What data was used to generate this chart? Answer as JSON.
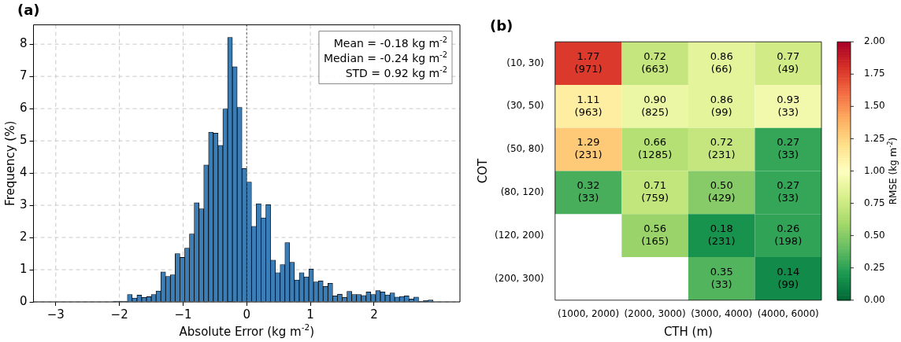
{
  "chart_data": [
    {
      "type": "histogram",
      "title": "(a)",
      "xlabel": "Absolute Error (kg m$^{-2}$)",
      "ylabel": "Frequency (%)",
      "bins": [
        -2.1,
        -2.025,
        -1.95,
        -1.875,
        -1.8,
        -1.725,
        -1.65,
        -1.575,
        -1.5,
        -1.425,
        -1.35,
        -1.275,
        -1.2,
        -1.125,
        -1.05,
        -0.975,
        -0.9,
        -0.825,
        -0.75,
        -0.675,
        -0.6,
        -0.525,
        -0.45,
        -0.375,
        -0.3,
        -0.225,
        -0.15,
        -0.075,
        0,
        0.075,
        0.15,
        0.225,
        0.3,
        0.375,
        0.45,
        0.525,
        0.6,
        0.675,
        0.75,
        0.825,
        0.9,
        0.975,
        1.05,
        1.125,
        1.2,
        1.275,
        1.35,
        1.425,
        1.5,
        1.575,
        1.65,
        1.725,
        1.8,
        1.875,
        1.95,
        2.025,
        2.1,
        2.175,
        2.25,
        2.325,
        2.4,
        2.475,
        2.55,
        2.625,
        2.7,
        2.775,
        2.85,
        2.925
      ],
      "values": [
        0.02,
        0.02,
        0.02,
        0.23,
        0.12,
        0.21,
        0.14,
        0.16,
        0.23,
        0.34,
        0.93,
        0.79,
        0.84,
        1.5,
        1.38,
        1.67,
        2.11,
        3.08,
        2.89,
        4.25,
        5.27,
        5.24,
        4.86,
        5.99,
        8.21,
        7.3,
        6.04,
        4.14,
        3.72,
        2.35,
        3.05,
        2.61,
        3.02,
        1.3,
        0.91,
        1.16,
        1.84,
        1.23,
        0.68,
        0.91,
        0.78,
        1.02,
        0.62,
        0.65,
        0.48,
        0.58,
        0.19,
        0.24,
        0.14,
        0.33,
        0.23,
        0.23,
        0.2,
        0.31,
        0.23,
        0.35,
        0.31,
        0.22,
        0.28,
        0.15,
        0.17,
        0.19,
        0.09,
        0.15,
        0.02,
        0.04,
        0.06
      ],
      "color": "#3b7db6",
      "xlim": [
        -3.35,
        3.35
      ],
      "xticks": [
        {
          "value": -3,
          "label": "−3"
        },
        {
          "value": -2,
          "label": "−2"
        },
        {
          "value": -1,
          "label": "−1"
        },
        0,
        1,
        2
      ],
      "ylim": [
        0,
        8.6
      ],
      "yticks": [
        0,
        1,
        2,
        3,
        4,
        5,
        6,
        7,
        8
      ],
      "grid": true,
      "ref_lines": [
        {
          "axis": "x",
          "value": 0,
          "line_style": "dotted",
          "color": "#555555"
        }
      ],
      "annotations": [
        "Mean = -0.18 kg m$^{-2}$",
        "Median = -0.24 kg m$^{-2}$",
        "STD = 0.92 kg m$^{-2}$"
      ]
    },
    {
      "type": "heatmap",
      "title": "(b)",
      "xlabel": "CTH (m)",
      "ylabel": "COT",
      "clabel": "RMSE (kg m$^{-2}$)",
      "categories": [
        "(1000, 2000)",
        "(2000, 3000)",
        "(3000, 4000)",
        "(4000, 6000)"
      ],
      "y_categories": [
        "(10, 30)",
        "(30, 50)",
        "(50, 80)",
        "(80, 120)",
        "(120, 200)",
        "(200, 300)"
      ],
      "cells": [
        [
          1.77,
          0.72,
          0.86,
          0.77
        ],
        [
          1.11,
          0.9,
          0.86,
          0.93
        ],
        [
          1.29,
          0.66,
          0.72,
          0.27
        ],
        [
          0.32,
          0.71,
          0.5,
          0.27
        ],
        [
          null,
          0.56,
          0.18,
          0.26
        ],
        [
          null,
          null,
          0.35,
          0.14
        ]
      ],
      "cell_labels": [
        [
          "1.77\n(971)",
          "0.72\n(663)",
          "0.86\n(66)",
          "0.77\n(49)"
        ],
        [
          "1.11\n(963)",
          "0.90\n(825)",
          "0.86\n(99)",
          "0.93\n(33)"
        ],
        [
          "1.29\n(231)",
          "0.66\n(1285)",
          "0.72\n(231)",
          "0.27\n(33)"
        ],
        [
          "0.32\n(33)",
          "0.71\n(759)",
          "0.50\n(429)",
          "0.27\n(33)"
        ],
        [
          null,
          "0.56\n(165)",
          "0.18\n(231)",
          "0.26\n(198)"
        ],
        [
          null,
          null,
          "0.35\n(33)",
          "0.14\n(99)"
        ]
      ],
      "clim": [
        0,
        2
      ],
      "cticks": [
        {
          "value": 0,
          "label": "0.00"
        },
        {
          "value": 0.25,
          "label": "0.25"
        },
        {
          "value": 0.5,
          "label": "0.50"
        },
        {
          "value": 0.75,
          "label": "0.75"
        },
        {
          "value": 1,
          "label": "1.00"
        },
        {
          "value": 1.25,
          "label": "1.25"
        },
        {
          "value": 1.5,
          "label": "1.50"
        },
        {
          "value": 1.75,
          "label": "1.75"
        },
        {
          "value": 2,
          "label": "2.00"
        }
      ]
    }
  ]
}
